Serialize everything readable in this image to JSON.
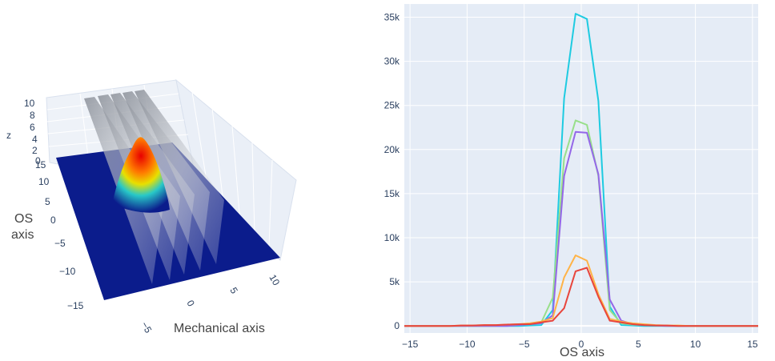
{
  "colors": {
    "plot_bg": "#e5ecf6",
    "grid": "#ffffff",
    "surface_floor": "#0b1c8c",
    "series": [
      "#1ecbe1",
      "#98df8a",
      "#9467e8",
      "#ffb347",
      "#e8453c"
    ]
  },
  "scene3d": {
    "z_title": "z",
    "y_title_line1": "OS",
    "y_title_line2": "axis",
    "x_title": "Mechanical axis",
    "z_ticks": [
      "10",
      "8",
      "6",
      "4",
      "2",
      "0"
    ],
    "y_ticks": [
      "15",
      "10",
      "5",
      "0",
      "−5",
      "−10",
      "−15"
    ],
    "x_ticks": [
      "−5",
      "0",
      "5",
      "10"
    ]
  },
  "chart_data": {
    "type": "line",
    "xlabel": "OS axis",
    "ylabel": "",
    "xlim": [
      -15.5,
      15.5
    ],
    "ylim": [
      -800,
      36500
    ],
    "xticks": [
      -15,
      -10,
      -5,
      0,
      5,
      10,
      15
    ],
    "xtick_labels": [
      "−15",
      "−10",
      "−5",
      "0",
      "5",
      "10",
      "15"
    ],
    "yticks": [
      0,
      5000,
      10000,
      15000,
      20000,
      25000,
      30000,
      35000
    ],
    "ytick_labels": [
      "0",
      "5k",
      "10k",
      "15k",
      "20k",
      "25k",
      "30k",
      "35k"
    ],
    "grid": true,
    "x": [
      -15.5,
      -14.5,
      -13.5,
      -12.5,
      -11.5,
      -10.5,
      -9.5,
      -8.5,
      -7.5,
      -6.5,
      -5.5,
      -4.5,
      -3.5,
      -2.5,
      -1.5,
      -0.5,
      0.5,
      1.5,
      2.5,
      3.5,
      4.5,
      5.5,
      6.5,
      7.5,
      8.5,
      9.5,
      10.5,
      11.5,
      12.5,
      13.5,
      14.5,
      15.5
    ],
    "series": [
      {
        "values": [
          0,
          0,
          0,
          0,
          0,
          0,
          0,
          0,
          0,
          0,
          0,
          50,
          100,
          1800,
          25800,
          35400,
          34800,
          25500,
          2200,
          100,
          50,
          0,
          0,
          0,
          0,
          0,
          0,
          0,
          0,
          0,
          0,
          0
        ]
      },
      {
        "values": [
          0,
          0,
          0,
          0,
          0,
          0,
          0,
          0,
          0,
          100,
          100,
          200,
          400,
          3200,
          19000,
          23300,
          22800,
          17000,
          1800,
          300,
          150,
          100,
          50,
          0,
          0,
          0,
          0,
          0,
          0,
          0,
          0,
          0
        ]
      },
      {
        "values": [
          0,
          0,
          0,
          0,
          0,
          0,
          0,
          0,
          0,
          0,
          100,
          200,
          300,
          1200,
          17000,
          22000,
          21900,
          17200,
          3000,
          600,
          200,
          100,
          50,
          0,
          0,
          0,
          0,
          0,
          0,
          0,
          0,
          0
        ]
      },
      {
        "values": [
          0,
          0,
          0,
          0,
          0,
          50,
          50,
          100,
          100,
          150,
          200,
          300,
          500,
          900,
          5500,
          8000,
          7400,
          3600,
          800,
          500,
          300,
          200,
          100,
          50,
          50,
          0,
          0,
          0,
          0,
          0,
          0,
          0
        ]
      },
      {
        "values": [
          0,
          0,
          0,
          0,
          0,
          50,
          50,
          100,
          100,
          150,
          200,
          200,
          400,
          600,
          2000,
          6200,
          6600,
          3300,
          600,
          400,
          200,
          100,
          50,
          50,
          0,
          0,
          0,
          0,
          0,
          0,
          0,
          0
        ]
      }
    ]
  }
}
